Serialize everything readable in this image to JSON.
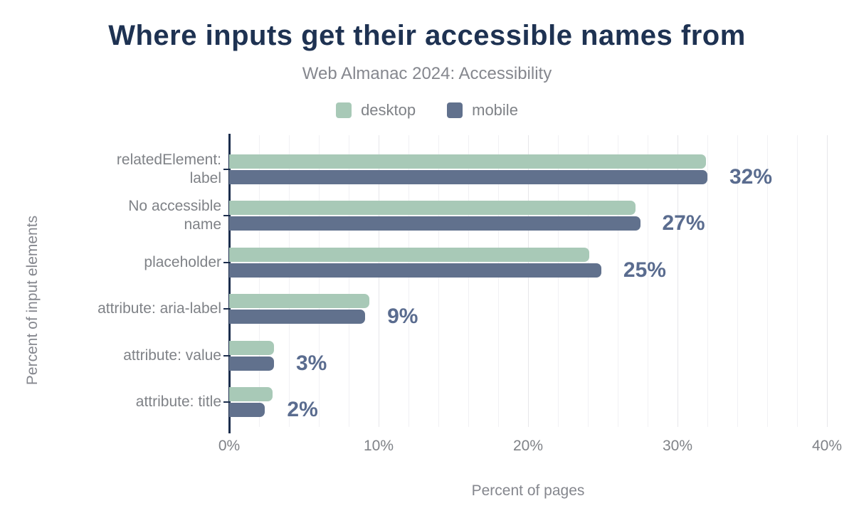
{
  "header": {
    "title": "Where inputs get their accessible names from",
    "subtitle": "Web Almanac 2024: Accessibility"
  },
  "legend": {
    "items": [
      {
        "label": "desktop",
        "color": "#a8c9b7"
      },
      {
        "label": "mobile",
        "color": "#61718d"
      }
    ]
  },
  "chart_data": {
    "type": "bar",
    "orientation": "horizontal",
    "title": "Where inputs get their accessible names from",
    "subtitle": "Web Almanac 2024: Accessibility",
    "categories": [
      "relatedElement:\nlabel",
      "No accessible\nname",
      "placeholder",
      "attribute: aria-label",
      "attribute: value",
      "attribute: title"
    ],
    "series": [
      {
        "name": "desktop",
        "color": "#a8c9b7",
        "values": [
          31.9,
          27.2,
          24.1,
          9.4,
          3.0,
          2.9
        ]
      },
      {
        "name": "mobile",
        "color": "#61718d",
        "values": [
          32.0,
          27.5,
          24.9,
          9.1,
          3.0,
          2.4
        ]
      }
    ],
    "data_labels": [
      "32%",
      "27%",
      "25%",
      "9%",
      "3%",
      "2%"
    ],
    "data_label_color": "#5a6c8f",
    "xlabel": "Percent of pages",
    "ylabel": "Percent of input elements",
    "xlim": [
      0,
      40
    ],
    "x_ticks": [
      {
        "value": 0,
        "label": "0%"
      },
      {
        "value": 10,
        "label": "10%"
      },
      {
        "value": 20,
        "label": "20%"
      },
      {
        "value": 30,
        "label": "30%"
      },
      {
        "value": 40,
        "label": "40%"
      }
    ],
    "grid": {
      "step": 2,
      "minor_color": "#f1f1f4",
      "major_color": "#e6e6ea"
    },
    "axis_color": "#1c2e4d",
    "legend_position": "top",
    "legend_entries": [
      "desktop",
      "mobile"
    ]
  }
}
